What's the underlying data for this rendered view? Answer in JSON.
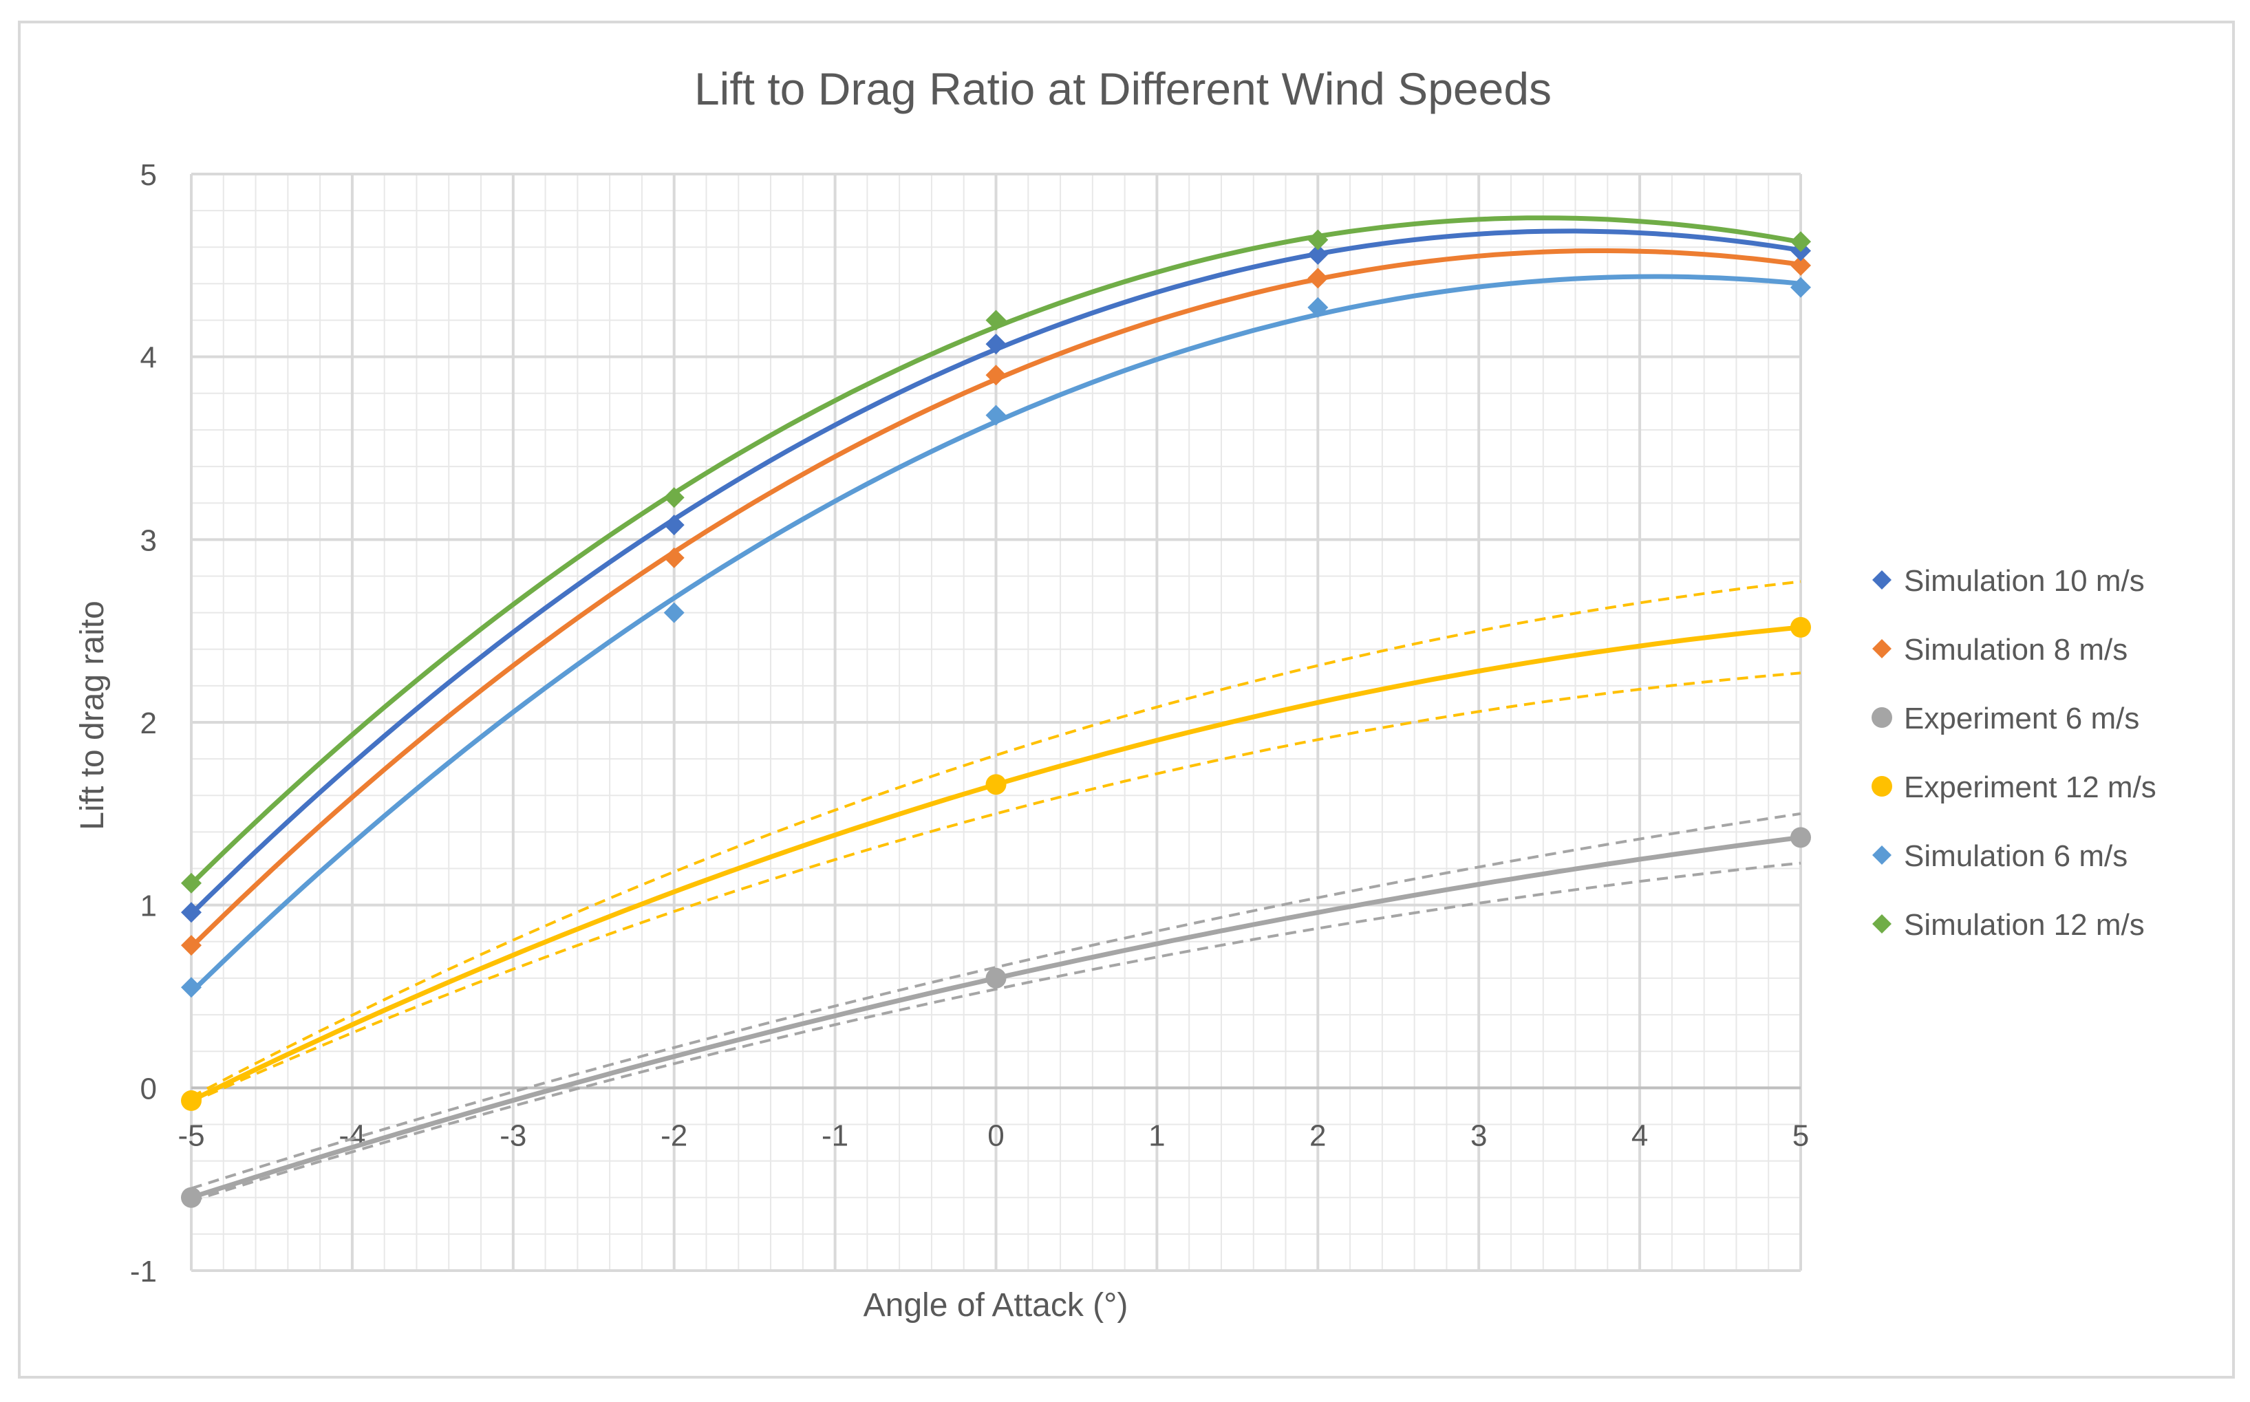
{
  "chart_data": {
    "type": "scatter",
    "title": "Lift to Drag Ratio at Different Wind Speeds",
    "xlabel": "Angle of Attack (°)",
    "ylabel": "Lift to drag raito",
    "xlim": [
      -5,
      5
    ],
    "ylim": [
      -1,
      5
    ],
    "xticks": [
      -5,
      -4,
      -3,
      -2,
      -1,
      0,
      1,
      2,
      3,
      4,
      5
    ],
    "yticks": [
      -1,
      0,
      1,
      2,
      3,
      4,
      5
    ],
    "x_tick_labels": [
      "-5",
      "-4",
      "-3",
      "-2",
      "-1",
      "0",
      "1",
      "2",
      "3",
      "4",
      "5"
    ],
    "y_tick_labels": [
      "-1",
      "0",
      "1",
      "2",
      "3",
      "4",
      "5"
    ],
    "minor_grid_step": 0.2,
    "grid": true,
    "legend_position": "right",
    "series": [
      {
        "name": "Simulation 10 m/s",
        "color": "#4472C4",
        "marker": "diamond",
        "x": [
          -5,
          -2,
          0,
          2,
          5
        ],
        "y": [
          0.96,
          3.08,
          4.07,
          4.56,
          4.58
        ],
        "trendline": "polynomial"
      },
      {
        "name": "Simulation 8 m/s",
        "color": "#ED7D31",
        "marker": "diamond",
        "x": [
          -5,
          -2,
          0,
          2,
          5
        ],
        "y": [
          0.78,
          2.9,
          3.9,
          4.43,
          4.5
        ],
        "trendline": "polynomial"
      },
      {
        "name": "Experiment 6 m/s",
        "color": "#A5A5A5",
        "marker": "circle",
        "x": [
          -5,
          0,
          5
        ],
        "y": [
          -0.6,
          0.6,
          1.37
        ],
        "trendline": "polynomial",
        "error_band": {
          "upper": [
            -0.55,
            0.66,
            1.5
          ],
          "lower": [
            -0.62,
            0.54,
            1.23
          ]
        }
      },
      {
        "name": "Experiment 12 m/s",
        "color": "#FFC000",
        "marker": "circle",
        "x": [
          -5,
          0,
          5
        ],
        "y": [
          -0.07,
          1.66,
          2.52
        ],
        "trendline": "polynomial",
        "error_band": {
          "upper": [
            -0.05,
            1.82,
            2.77
          ],
          "lower": [
            -0.08,
            1.5,
            2.27
          ]
        }
      },
      {
        "name": "Simulation 6 m/s",
        "color": "#5B9BD5",
        "marker": "diamond",
        "x": [
          -5,
          -2,
          0,
          2,
          5
        ],
        "y": [
          0.55,
          2.6,
          3.68,
          4.27,
          4.38
        ],
        "trendline": "polynomial"
      },
      {
        "name": "Simulation 12 m/s",
        "color": "#70AD47",
        "marker": "diamond",
        "x": [
          -5,
          -2,
          0,
          2,
          5
        ],
        "y": [
          1.12,
          3.23,
          4.2,
          4.64,
          4.63
        ],
        "trendline": "polynomial"
      }
    ]
  },
  "colors": {
    "major_grid": "#D9D9D9",
    "minor_grid": "#E8E8E8",
    "axis": "#BFBFBF",
    "text": "#595959",
    "border": "#D9D9D9"
  }
}
